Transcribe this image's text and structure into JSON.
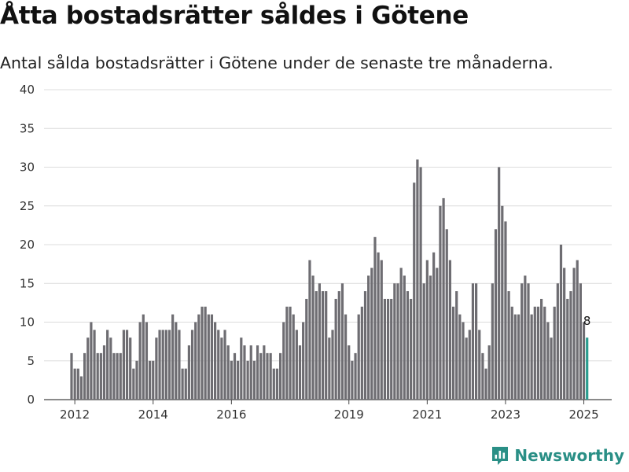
{
  "header": {
    "title": "Åtta bostadsrätter såldes i Götene",
    "subtitle": "Antal sålda bostadsrätter i Götene under de senaste tre månaderna."
  },
  "brand": {
    "name": "Newsworthy",
    "icon": "bar-chart-logo-icon",
    "color": "#2a8f86"
  },
  "chart_data": {
    "type": "bar",
    "title": "Åtta bostadsrätter såldes i Götene",
    "subtitle": "Antal sålda bostadsrätter i Götene under de senaste tre månaderna.",
    "xlabel": "",
    "ylabel": "",
    "ylim": [
      0,
      40
    ],
    "yticks": [
      0,
      5,
      10,
      15,
      20,
      25,
      30,
      35,
      40
    ],
    "xticks": [
      "2012",
      "2014",
      "2016",
      "2019",
      "2021",
      "2023",
      "2025"
    ],
    "grid": true,
    "colors": {
      "bar": "#6e6d72",
      "highlight": "#2a9d8f",
      "grid": "#dcdcdc"
    },
    "x_start": "2011-12",
    "values": [
      6,
      4,
      4,
      3,
      6,
      8,
      10,
      9,
      6,
      6,
      7,
      9,
      8,
      6,
      6,
      6,
      9,
      9,
      8,
      4,
      5,
      10,
      11,
      10,
      5,
      5,
      8,
      9,
      9,
      9,
      9,
      11,
      10,
      9,
      4,
      4,
      7,
      9,
      10,
      11,
      12,
      12,
      11,
      11,
      10,
      9,
      8,
      9,
      7,
      5,
      6,
      5,
      8,
      7,
      5,
      7,
      5,
      7,
      6,
      7,
      6,
      6,
      4,
      4,
      6,
      10,
      12,
      12,
      11,
      9,
      7,
      10,
      13,
      18,
      16,
      14,
      15,
      14,
      14,
      8,
      9,
      13,
      14,
      15,
      11,
      7,
      5,
      6,
      11,
      12,
      14,
      16,
      17,
      21,
      19,
      18,
      13,
      13,
      13,
      15,
      15,
      17,
      16,
      14,
      13,
      28,
      31,
      30,
      15,
      18,
      16,
      19,
      17,
      25,
      26,
      22,
      18,
      12,
      14,
      11,
      10,
      8,
      9,
      15,
      15,
      9,
      6,
      4,
      7,
      15,
      22,
      30,
      25,
      23,
      14,
      12,
      11,
      11,
      15,
      16,
      15,
      11,
      12,
      12,
      13,
      12,
      10,
      8,
      12,
      15,
      20,
      17,
      13,
      14,
      17,
      18,
      15,
      10,
      8
    ],
    "highlight_last": true,
    "data_labels": [
      {
        "index": 158,
        "text": "8"
      }
    ]
  }
}
